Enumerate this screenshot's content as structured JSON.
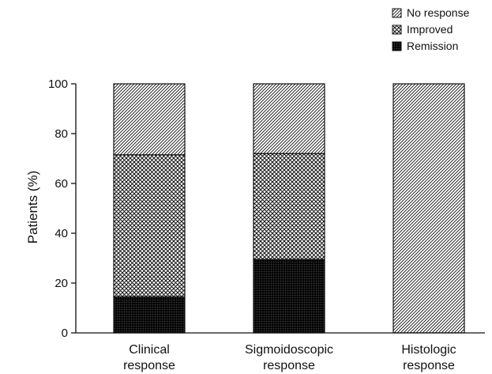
{
  "chart_data": {
    "type": "bar",
    "stacked": true,
    "title": "",
    "xlabel": "",
    "ylabel": "Patients (%)",
    "ylim": [
      0,
      100
    ],
    "yticks": [
      0,
      20,
      40,
      60,
      80,
      100
    ],
    "grid": false,
    "legend_position": "top-right",
    "categories": [
      [
        "Clinical",
        "response"
      ],
      [
        "Sigmoidoscopic",
        "response"
      ],
      [
        "Histologic",
        "response"
      ]
    ],
    "series": [
      {
        "name": "Remission",
        "pattern": "dense-crosshatch",
        "values": [
          14.5,
          29.5,
          0
        ]
      },
      {
        "name": "Improved",
        "pattern": "crosshatch",
        "values": [
          57,
          42.5,
          0
        ]
      },
      {
        "name": "No response",
        "pattern": "diagonal-hatch",
        "values": [
          28.5,
          28,
          100
        ]
      }
    ],
    "legend_order": [
      "No response",
      "Improved",
      "Remission"
    ],
    "colors": {
      "ink": "#111111",
      "background": "#ffffff"
    }
  }
}
